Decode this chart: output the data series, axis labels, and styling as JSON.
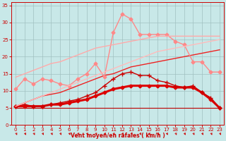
{
  "x": [
    0,
    1,
    2,
    3,
    4,
    5,
    6,
    7,
    8,
    9,
    10,
    11,
    12,
    13,
    14,
    15,
    16,
    17,
    18,
    19,
    20,
    21,
    22,
    23
  ],
  "series": [
    {
      "label": "flat_dark",
      "color": "#bb0000",
      "linewidth": 0.8,
      "marker": null,
      "markersize": 0,
      "y": [
        5.0,
        5.0,
        5.0,
        5.0,
        5.0,
        5.0,
        5.0,
        5.0,
        5.0,
        5.0,
        5.0,
        5.0,
        5.0,
        5.0,
        5.0,
        5.0,
        5.0,
        5.0,
        5.0,
        5.0,
        5.0,
        5.0,
        5.0,
        5.0
      ]
    },
    {
      "label": "line_red_smooth_bold",
      "color": "#dd0000",
      "linewidth": 2.2,
      "marker": "D",
      "markersize": 2.5,
      "y": [
        5.5,
        5.5,
        5.5,
        5.5,
        6.0,
        6.0,
        6.5,
        7.0,
        7.5,
        8.5,
        9.5,
        10.5,
        11.0,
        11.5,
        11.5,
        11.5,
        11.5,
        11.5,
        11.0,
        11.0,
        11.0,
        9.5,
        7.5,
        5.0
      ]
    },
    {
      "label": "line_red_thin_marker",
      "color": "#cc0000",
      "linewidth": 1.0,
      "marker": "+",
      "markersize": 4,
      "y": [
        5.5,
        6.0,
        5.5,
        5.5,
        6.0,
        6.5,
        7.0,
        7.5,
        8.5,
        9.5,
        11.5,
        13.5,
        15.0,
        15.5,
        14.5,
        14.5,
        13.0,
        12.5,
        11.5,
        11.0,
        11.5,
        9.5,
        8.0,
        5.0
      ]
    },
    {
      "label": "line_red_diag",
      "color": "#ee2222",
      "linewidth": 1.0,
      "marker": null,
      "markersize": 0,
      "y": [
        5.5,
        6.5,
        7.5,
        8.5,
        9.0,
        9.5,
        10.5,
        11.5,
        12.5,
        13.5,
        14.5,
        15.0,
        16.0,
        17.0,
        17.5,
        18.0,
        18.5,
        19.0,
        19.5,
        20.0,
        20.5,
        21.0,
        21.5,
        22.0
      ]
    },
    {
      "label": "line_pink_mid",
      "color": "#ff8888",
      "linewidth": 1.0,
      "marker": "D",
      "markersize": 2.5,
      "y": [
        10.5,
        13.5,
        12.0,
        13.5,
        13.0,
        12.0,
        11.5,
        13.5,
        15.0,
        18.0,
        14.0,
        27.0,
        32.5,
        31.0,
        26.5,
        26.5,
        26.5,
        26.5,
        24.5,
        23.5,
        18.5,
        18.5,
        15.5,
        15.5
      ]
    },
    {
      "label": "line_pink_diag_upper",
      "color": "#ffaaaa",
      "linewidth": 1.0,
      "marker": null,
      "markersize": 0,
      "y": [
        14.0,
        15.0,
        16.0,
        17.0,
        18.0,
        18.5,
        19.5,
        20.5,
        21.5,
        22.5,
        23.0,
        23.5,
        24.0,
        24.5,
        25.0,
        25.5,
        26.0,
        26.0,
        26.0,
        26.0,
        26.0,
        26.0,
        26.0,
        26.0
      ]
    },
    {
      "label": "line_pink_diag_lower",
      "color": "#ffbbbb",
      "linewidth": 1.0,
      "marker": null,
      "markersize": 0,
      "y": [
        5.5,
        6.5,
        7.5,
        8.5,
        9.5,
        10.5,
        11.5,
        12.5,
        13.5,
        14.5,
        15.5,
        16.5,
        17.5,
        18.5,
        19.5,
        20.5,
        21.5,
        22.0,
        22.5,
        23.0,
        23.5,
        24.0,
        24.5,
        25.0
      ]
    }
  ],
  "wind_arrows": true,
  "xlim": [
    -0.5,
    23.5
  ],
  "ylim": [
    0,
    36
  ],
  "yticks": [
    0,
    5,
    10,
    15,
    20,
    25,
    30,
    35
  ],
  "xticks": [
    0,
    1,
    2,
    3,
    4,
    5,
    6,
    7,
    8,
    9,
    10,
    11,
    12,
    13,
    14,
    15,
    16,
    17,
    18,
    19,
    20,
    21,
    22,
    23
  ],
  "xlabel": "Vent moyen/en rafales ( km/h )",
  "background_color": "#c8e8e8",
  "grid_color": "#a0c0c0",
  "tick_color": "#cc0000",
  "label_color": "#cc0000",
  "arrow_color": "#cc0000"
}
